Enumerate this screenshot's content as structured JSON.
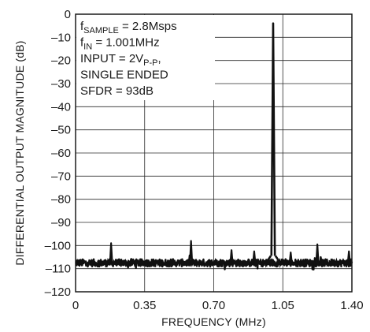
{
  "chart_data": {
    "type": "line",
    "xlabel": "FREQUENCY (MHz)",
    "ylabel": "DIFFERENTIAL OUTPUT MAGNITUDE (dB)",
    "xlim": [
      0,
      1.4
    ],
    "ylim": [
      -120,
      0
    ],
    "x_ticks": [
      0,
      0.35,
      0.7,
      1.05,
      1.4
    ],
    "x_tick_labels": [
      "0",
      "0.35",
      "0.70",
      "1.05",
      "1.40"
    ],
    "y_ticks": [
      0,
      -10,
      -20,
      -30,
      -40,
      -50,
      -60,
      -70,
      -80,
      -90,
      -100,
      -110,
      -120
    ],
    "y_tick_labels": [
      "0",
      "–10",
      "–20",
      "–30",
      "–40",
      "–50",
      "–60",
      "–70",
      "–80",
      "–90",
      "–100",
      "–110",
      "–120"
    ],
    "grid": true,
    "noise_floor_db": -107.5,
    "peaks": [
      {
        "x": 0.18,
        "y": -99
      },
      {
        "x": 0.585,
        "y": -98
      },
      {
        "x": 0.79,
        "y": -102
      },
      {
        "x": 0.905,
        "y": -102.5
      },
      {
        "x": 1.001,
        "y": -4
      },
      {
        "x": 1.09,
        "y": -103
      },
      {
        "x": 1.225,
        "y": -99.5
      },
      {
        "x": 1.385,
        "y": -102.5
      }
    ],
    "annotations": [
      {
        "main": "f",
        "sub": "SAMPLE",
        "rest": " = 2.8Msps"
      },
      {
        "main": "f",
        "sub": "IN",
        "rest": " = 1.001MHz"
      },
      {
        "main": "INPUT = 2V",
        "sub": "P-P",
        "rest": ","
      },
      {
        "main": "SINGLE ENDED",
        "sub": "",
        "rest": ""
      },
      {
        "main": "SFDR = 93dB",
        "sub": "",
        "rest": ""
      }
    ]
  }
}
